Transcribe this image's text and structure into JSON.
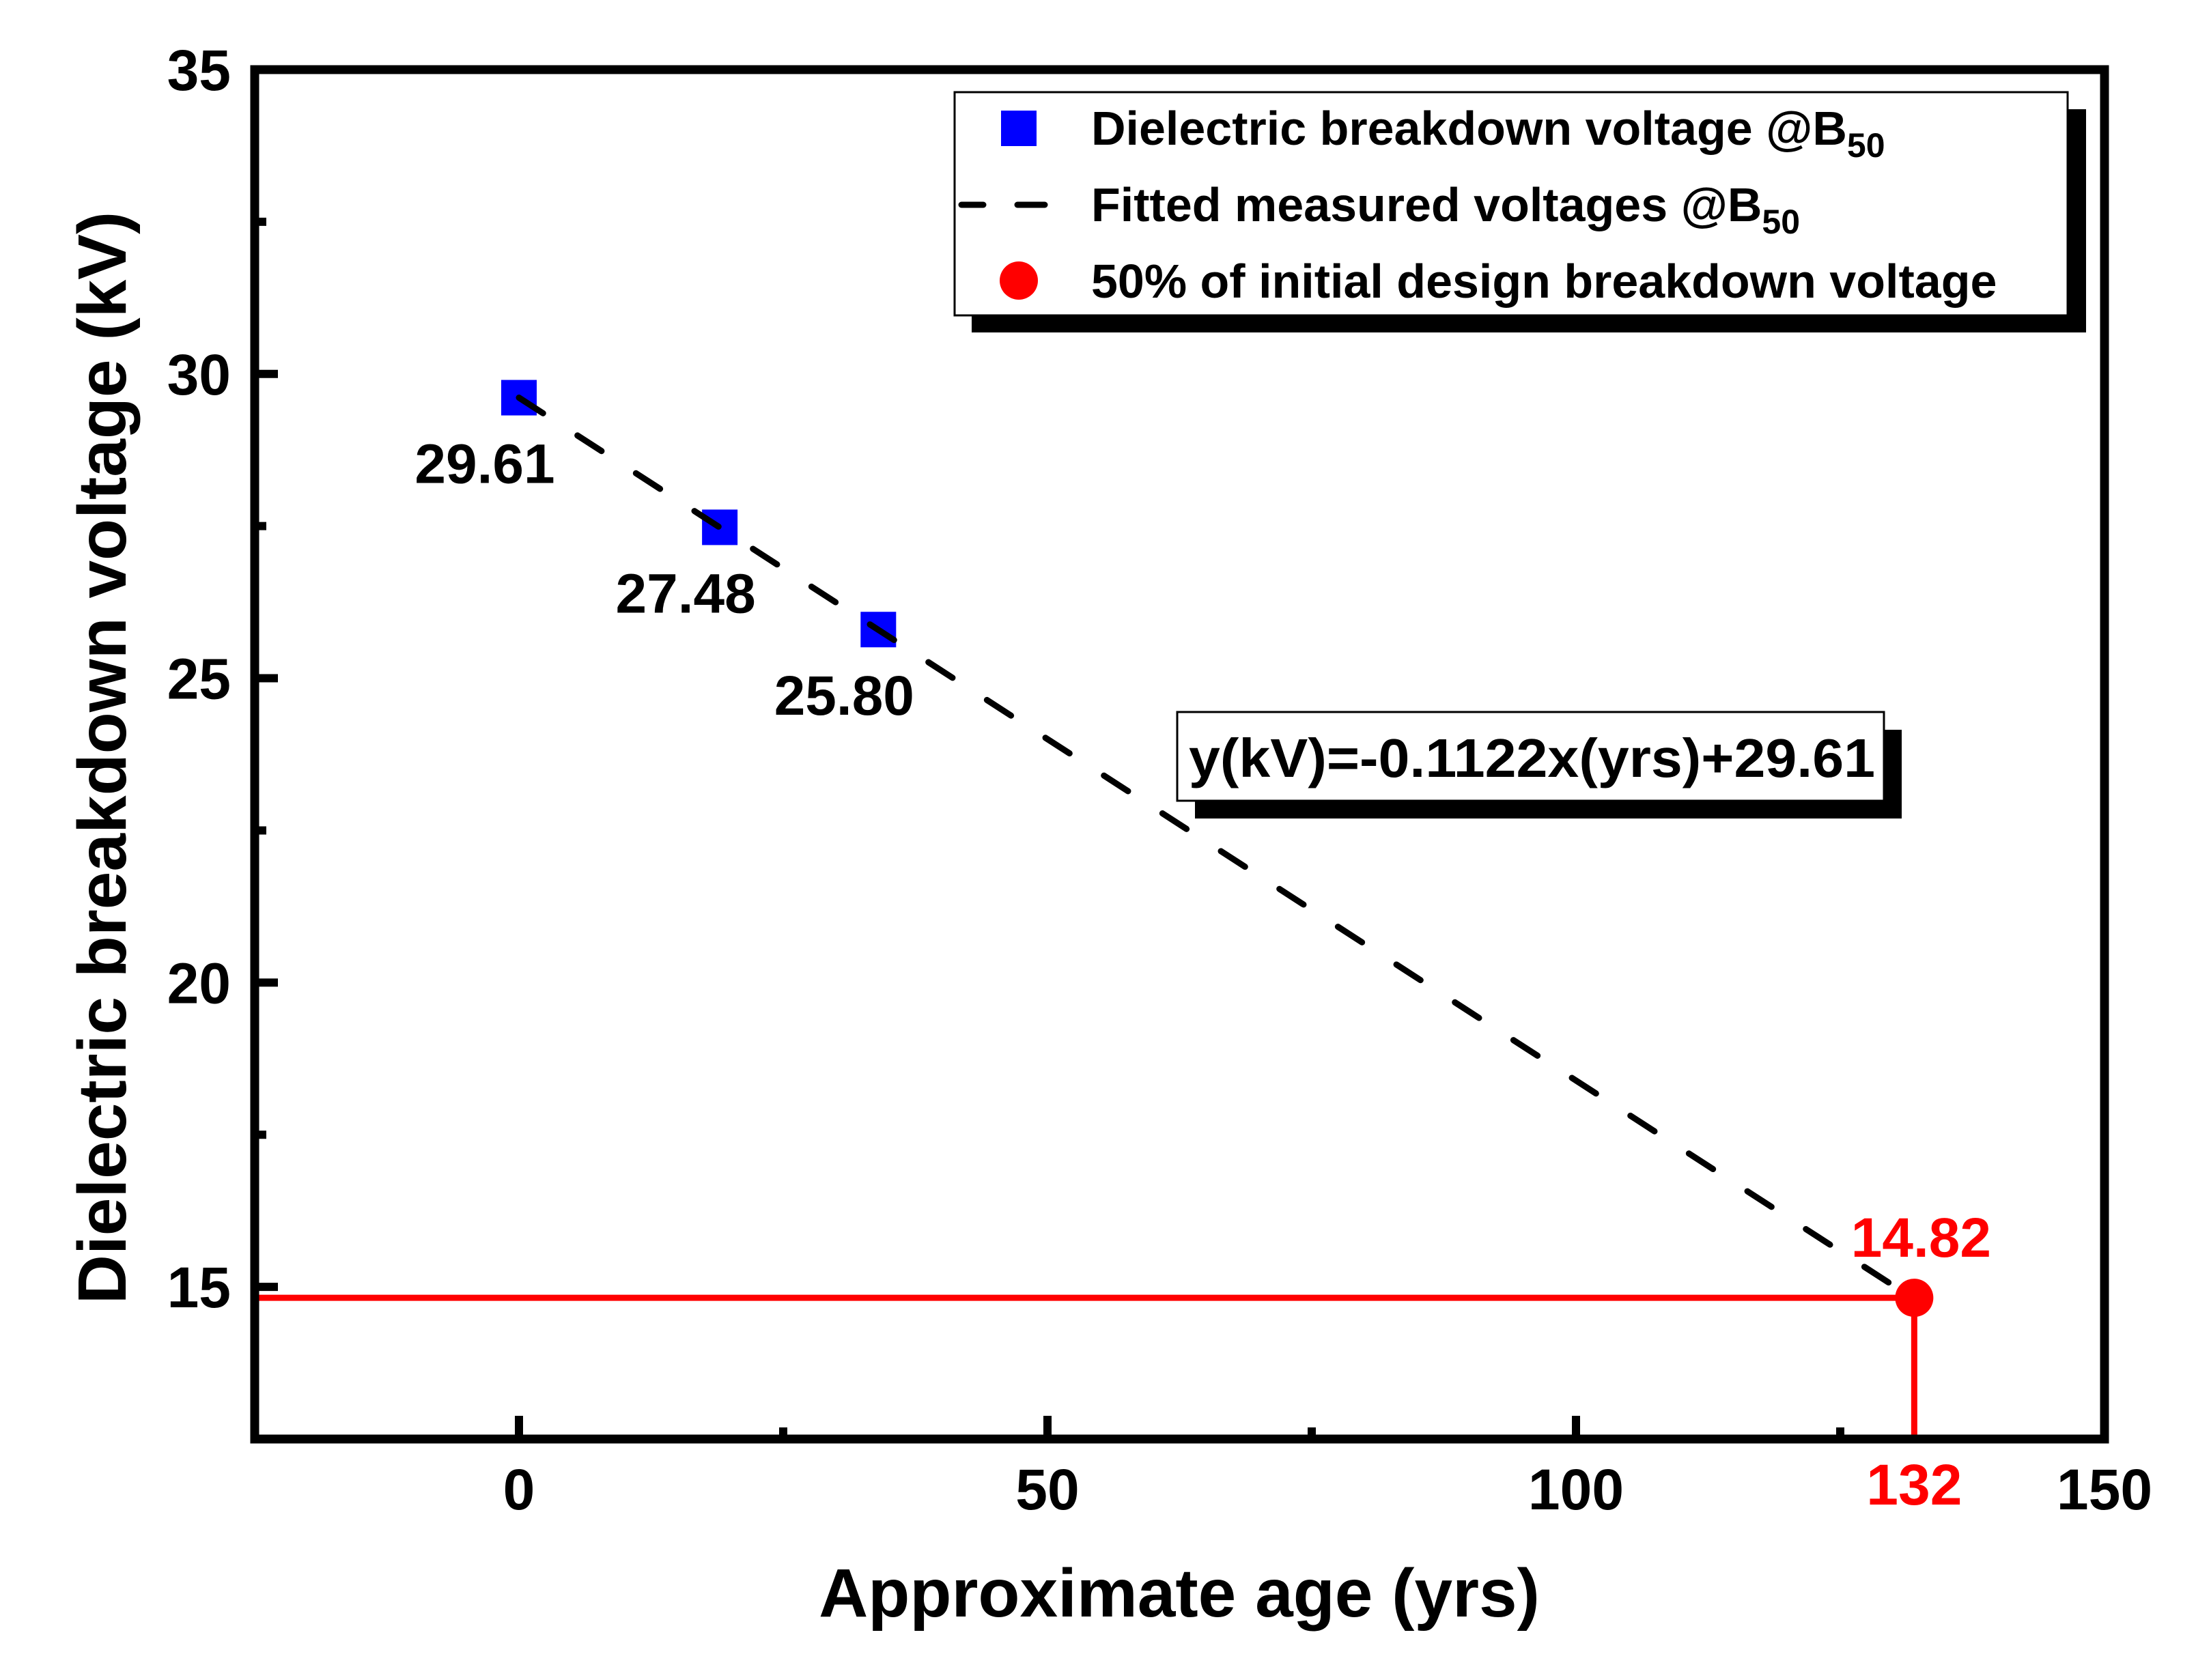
{
  "chart_data": {
    "type": "scatter",
    "title": "",
    "xlabel": "Approximate age (yrs)",
    "ylabel": "Dielectric breakdown voltage (kV)",
    "xlim": [
      -25,
      150
    ],
    "ylim": [
      12.5,
      35
    ],
    "x_ticks": [
      0,
      50,
      100,
      150
    ],
    "x_minor_ticks": [
      25,
      75,
      125
    ],
    "y_ticks": [
      15,
      20,
      25,
      30,
      35
    ],
    "y_minor_ticks": [
      17.5,
      22.5,
      27.5,
      32.5
    ],
    "grid": false,
    "legend_position": "top-right",
    "series": [
      {
        "name": "Dielectric breakdown voltage @B",
        "name_subscript": "50",
        "type": "scatter",
        "marker": "square",
        "color": "#0000ff",
        "x": [
          0,
          19,
          34
        ],
        "y": [
          29.61,
          27.48,
          25.8
        ],
        "labels": [
          "29.61",
          "27.48",
          "25.80"
        ]
      },
      {
        "name": "Fitted measured voltages @B",
        "name_subscript": "50",
        "type": "line",
        "style": "dashed",
        "color": "#000000",
        "x": [
          0,
          132
        ],
        "y": [
          29.61,
          14.8
        ],
        "slope": -0.1122,
        "intercept": 29.61
      },
      {
        "name": "50% of initial design breakdown voltage",
        "type": "scatter",
        "marker": "circle",
        "color": "#ff0000",
        "x": [
          132
        ],
        "y": [
          14.82
        ],
        "labels": [
          "14.82"
        ],
        "x_label": "132",
        "drop_lines": true
      }
    ],
    "annotations": [
      {
        "text": "y(kV)=-0.1122x(yrs)+29.61",
        "boxed": true
      }
    ]
  }
}
